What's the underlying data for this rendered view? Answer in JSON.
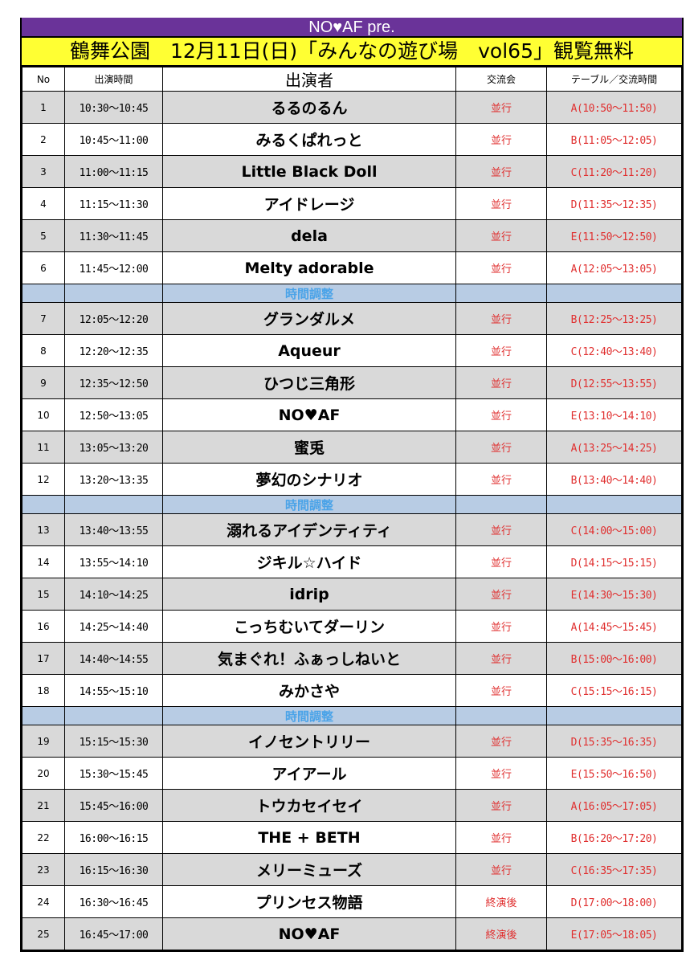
{
  "banner": "NO♥AF pre.",
  "title": "鶴舞公園　12月11日(日)「みんなの遊び場　vol65」観覧無料",
  "headers": {
    "no": "No",
    "time": "出演時間",
    "performer": "出演者",
    "exchange": "交流会",
    "table": "テーブル／交流時間"
  },
  "colors": {
    "banner": "#6a3399",
    "title_bg": "#ffff33",
    "odd_row": "#d9d9d9",
    "break_row": "#b8cce4",
    "break_text": "#4aa3e8",
    "accent_red": "#e03030"
  },
  "rows": [
    {
      "no": "1",
      "time": "10:30〜10:45",
      "performer": "るるのるん",
      "exchange": "並行",
      "table": "A(10:50〜11:50)"
    },
    {
      "no": "2",
      "time": "10:45〜11:00",
      "performer": "みるくぱれっと",
      "exchange": "並行",
      "table": "B(11:05〜12:05)"
    },
    {
      "no": "3",
      "time": "11:00〜11:15",
      "performer": "Little Black Doll",
      "exchange": "並行",
      "table": "C(11:20〜11:20)"
    },
    {
      "no": "4",
      "time": "11:15〜11:30",
      "performer": "アイドレージ",
      "exchange": "並行",
      "table": "D(11:35〜12:35)"
    },
    {
      "no": "5",
      "time": "11:30〜11:45",
      "performer": "dela",
      "exchange": "並行",
      "table": "E(11:50〜12:50)"
    },
    {
      "no": "6",
      "time": "11:45〜12:00",
      "performer": "Melty adorable",
      "exchange": "並行",
      "table": "A(12:05〜13:05)"
    },
    {
      "break": "時間調整"
    },
    {
      "no": "7",
      "time": "12:05〜12:20",
      "performer": "グランダルメ",
      "exchange": "並行",
      "table": "B(12:25〜13:25)"
    },
    {
      "no": "8",
      "time": "12:20〜12:35",
      "performer": "Aqueur",
      "exchange": "並行",
      "table": "C(12:40〜13:40)"
    },
    {
      "no": "9",
      "time": "12:35〜12:50",
      "performer": "ひつじ三角形",
      "exchange": "並行",
      "table": "D(12:55〜13:55)"
    },
    {
      "no": "10",
      "time": "12:50〜13:05",
      "performer": "NO♥AF",
      "exchange": "並行",
      "table": "E(13:10〜14:10)"
    },
    {
      "no": "11",
      "time": "13:05〜13:20",
      "performer": "蜜兎",
      "exchange": "並行",
      "table": "A(13:25〜14:25)"
    },
    {
      "no": "12",
      "time": "13:20〜13:35",
      "performer": "夢幻のシナリオ",
      "exchange": "並行",
      "table": "B(13:40〜14:40)"
    },
    {
      "break": "時間調整"
    },
    {
      "no": "13",
      "time": "13:40〜13:55",
      "performer": "溺れるアイデンティティ",
      "exchange": "並行",
      "table": "C(14:00〜15:00)"
    },
    {
      "no": "14",
      "time": "13:55〜14:10",
      "performer": "ジキル☆ハイド",
      "exchange": "並行",
      "table": "D(14:15〜15:15)"
    },
    {
      "no": "15",
      "time": "14:10〜14:25",
      "performer": "idrip",
      "exchange": "並行",
      "table": "E(14:30〜15:30)"
    },
    {
      "no": "16",
      "time": "14:25〜14:40",
      "performer": "こっちむいてダーリン",
      "exchange": "並行",
      "table": "A(14:45〜15:45)"
    },
    {
      "no": "17",
      "time": "14:40〜14:55",
      "performer": "気まぐれ！ふぁっしねいと",
      "exchange": "並行",
      "table": "B(15:00〜16:00)"
    },
    {
      "no": "18",
      "time": "14:55〜15:10",
      "performer": "みかさや",
      "exchange": "並行",
      "table": "C(15:15〜16:15)"
    },
    {
      "break": "時間調整"
    },
    {
      "no": "19",
      "time": "15:15〜15:30",
      "performer": "イノセントリリー",
      "exchange": "並行",
      "table": "D(15:35〜16:35)"
    },
    {
      "no": "20",
      "time": "15:30〜15:45",
      "performer": "アイアール",
      "exchange": "並行",
      "table": "E(15:50〜16:50)"
    },
    {
      "no": "21",
      "time": "15:45〜16:00",
      "performer": "トウカセイセイ",
      "exchange": "並行",
      "table": "A(16:05〜17:05)"
    },
    {
      "no": "22",
      "time": "16:00〜16:15",
      "performer": "THE + BETH",
      "exchange": "並行",
      "table": "B(16:20〜17:20)"
    },
    {
      "no": "23",
      "time": "16:15〜16:30",
      "performer": "メリーミューズ",
      "exchange": "並行",
      "table": "C(16:35〜17:35)"
    },
    {
      "no": "24",
      "time": "16:30〜16:45",
      "performer": "プリンセス物語",
      "exchange": "終演後",
      "table": "D(17:00〜18:00)"
    },
    {
      "no": "25",
      "time": "16:45〜17:00",
      "performer": "NO♥AF",
      "exchange": "終演後",
      "table": "E(17:05〜18:05)"
    }
  ]
}
